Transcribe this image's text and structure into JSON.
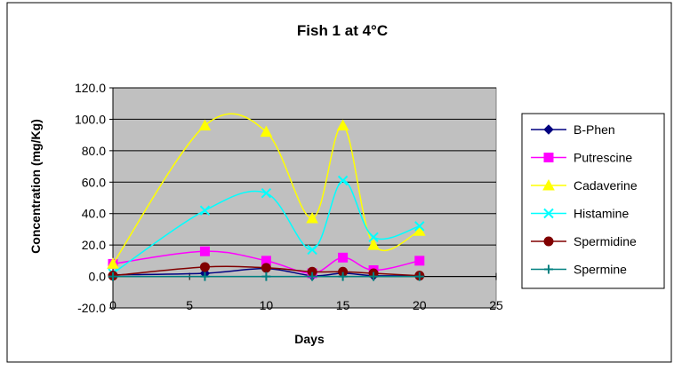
{
  "chart_data": {
    "type": "line",
    "title": "Fish 1 at 4°C",
    "xlabel": "Days",
    "ylabel": "Concentration (mg/Kg)",
    "xlim": [
      0,
      25
    ],
    "ylim": [
      -20,
      120
    ],
    "x_ticks": [
      "0",
      "5",
      "10",
      "15",
      "20",
      "25"
    ],
    "y_ticks": [
      "-20.0",
      "0.0",
      "20.0",
      "40.0",
      "60.0",
      "80.0",
      "100.0",
      "120.0"
    ],
    "x_tick_values": [
      0,
      5,
      10,
      15,
      20,
      25
    ],
    "y_tick_values": [
      -20,
      0,
      20,
      40,
      60,
      80,
      100,
      120
    ],
    "grid": "horizontal",
    "plot_background": "#c0c0c0",
    "smoothed": true,
    "legend_position": "right",
    "x": [
      0,
      6,
      10,
      13,
      15,
      17,
      20
    ],
    "series": [
      {
        "name": "B-Phen",
        "values": [
          1.0,
          2.0,
          5.0,
          0.5,
          2.0,
          0.5,
          0.5
        ],
        "color": "#000080",
        "marker": "diamond"
      },
      {
        "name": "Putrescine",
        "values": [
          8.0,
          16.0,
          10.0,
          2.0,
          12.0,
          4.0,
          10.0
        ],
        "color": "#ff00ff",
        "marker": "square"
      },
      {
        "name": "Cadaverine",
        "values": [
          8.0,
          96.0,
          92.0,
          37.0,
          96.0,
          20.0,
          29.0
        ],
        "color": "#ffff00",
        "marker": "triangle"
      },
      {
        "name": "Histamine",
        "values": [
          2.0,
          42.0,
          53.0,
          17.0,
          61.0,
          25.0,
          32.0
        ],
        "color": "#00ffff",
        "marker": "x"
      },
      {
        "name": "Spermidine",
        "values": [
          0.5,
          6.0,
          5.5,
          3.0,
          3.0,
          2.0,
          0.5
        ],
        "color": "#800000",
        "marker": "circle"
      },
      {
        "name": "Spermine",
        "values": [
          0.0,
          0.0,
          0.0,
          0.0,
          0.0,
          0.0,
          0.0
        ],
        "color": "#008080",
        "marker": "plus"
      }
    ]
  }
}
